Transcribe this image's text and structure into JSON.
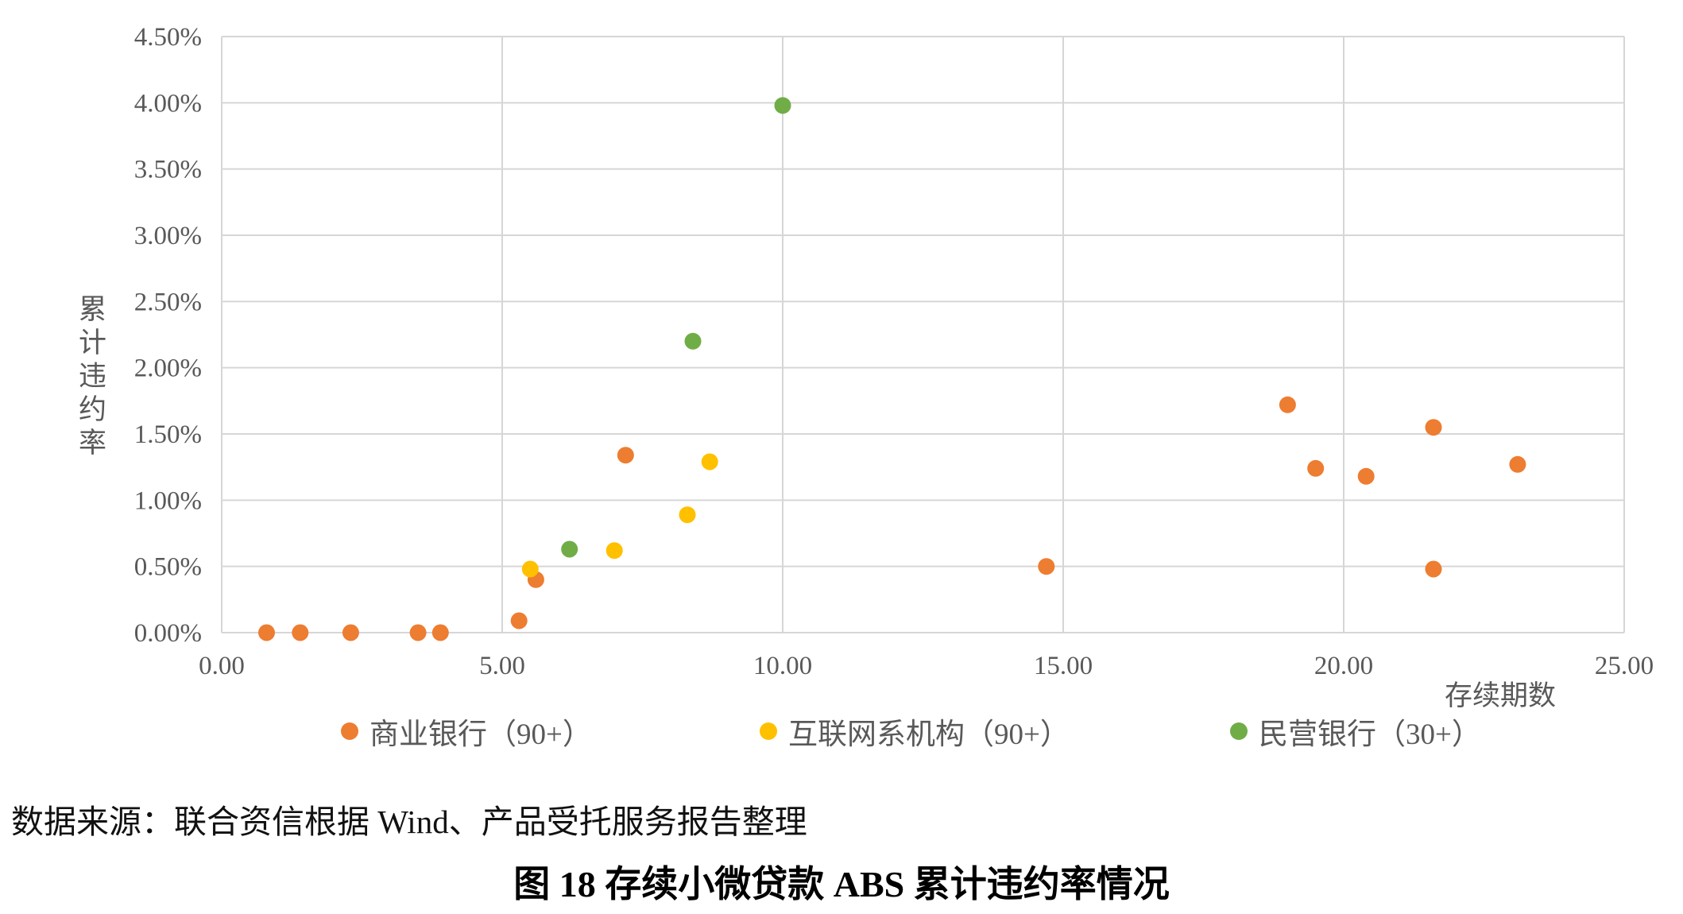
{
  "chart_data": {
    "type": "scatter",
    "title": "图 18  存续小微贷款 ABS 累计违约率情况",
    "xlabel": "存续期数",
    "ylabel": "累计违约率",
    "xlim": [
      0,
      25
    ],
    "ylim_percent": [
      0,
      4.5
    ],
    "grid": true,
    "legend_position": "bottom",
    "marker_radius": 10.5,
    "gridline_color": "#d6d6d6",
    "x_ticks": [
      {
        "value": 0,
        "label": "0.00"
      },
      {
        "value": 5,
        "label": "5.00"
      },
      {
        "value": 10,
        "label": "10.00"
      },
      {
        "value": 15,
        "label": "15.00"
      },
      {
        "value": 20,
        "label": "20.00"
      },
      {
        "value": 25,
        "label": "25.00"
      }
    ],
    "y_ticks": [
      {
        "value": 0.0,
        "label": "0.00%"
      },
      {
        "value": 0.5,
        "label": "0.50%"
      },
      {
        "value": 1.0,
        "label": "1.00%"
      },
      {
        "value": 1.5,
        "label": "1.50%"
      },
      {
        "value": 2.0,
        "label": "2.00%"
      },
      {
        "value": 2.5,
        "label": "2.50%"
      },
      {
        "value": 3.0,
        "label": "3.00%"
      },
      {
        "value": 3.5,
        "label": "3.50%"
      },
      {
        "value": 4.0,
        "label": "4.00%"
      },
      {
        "value": 4.5,
        "label": "4.50%"
      }
    ],
    "series": [
      {
        "name": "商业银行（90+）",
        "color": "#ED7D31",
        "points": [
          [
            0.8,
            0.0
          ],
          [
            1.4,
            0.0
          ],
          [
            2.3,
            0.0
          ],
          [
            3.5,
            0.0
          ],
          [
            3.9,
            0.0
          ],
          [
            5.3,
            0.09
          ],
          [
            5.6,
            0.4
          ],
          [
            7.2,
            1.34
          ],
          [
            14.7,
            0.5
          ],
          [
            19.0,
            1.72
          ],
          [
            19.5,
            1.24
          ],
          [
            20.4,
            1.18
          ],
          [
            21.6,
            1.55
          ],
          [
            21.6,
            0.48
          ],
          [
            23.1,
            1.27
          ]
        ]
      },
      {
        "name": "互联网系机构（90+）",
        "color": "#FFC000",
        "points": [
          [
            5.5,
            0.48
          ],
          [
            7.0,
            0.62
          ],
          [
            8.3,
            0.89
          ],
          [
            8.7,
            1.29
          ]
        ]
      },
      {
        "name": "民营银行（30+）",
        "color": "#70AD47",
        "points": [
          [
            6.2,
            0.63
          ],
          [
            8.4,
            2.2
          ],
          [
            10.0,
            3.98
          ]
        ]
      }
    ]
  },
  "source_note": "数据来源：联合资信根据 Wind、产品受托服务报告整理",
  "caption": "图 18  存续小微贷款 ABS 累计违约率情况"
}
